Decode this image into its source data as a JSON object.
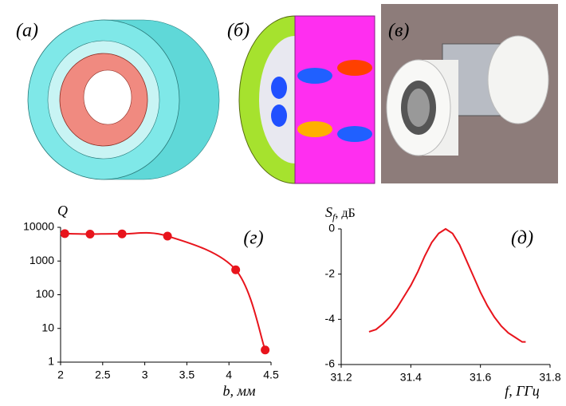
{
  "panel_labels": [
    "(a)",
    "(б)",
    "(в)"
  ],
  "chart_data": [
    {
      "type": "line",
      "annotation": "(г)",
      "ylabel": "Q",
      "xlabel": "b, мм",
      "x": [
        2.05,
        2.35,
        2.73,
        3.27,
        4.08,
        4.43
      ],
      "values": [
        6500,
        6300,
        6400,
        5500,
        550,
        2.3
      ],
      "color": "#e8141c",
      "markers": true,
      "log_y": true,
      "xlim": [
        2,
        4.5
      ],
      "xticks": [
        2,
        2.5,
        3,
        3.5,
        4,
        4.5
      ],
      "ylim": [
        1,
        10000
      ],
      "yticks": [
        1,
        10,
        100,
        1000,
        10000
      ]
    },
    {
      "type": "line",
      "annotation": "(д)",
      "ylabel": [
        "S",
        "f",
        ", дБ"
      ],
      "xlabel": "f, ГГц",
      "x": [
        31.28,
        31.3,
        31.32,
        31.34,
        31.36,
        31.38,
        31.4,
        31.42,
        31.44,
        31.46,
        31.48,
        31.5,
        31.52,
        31.54,
        31.56,
        31.58,
        31.6,
        31.62,
        31.64,
        31.66,
        31.68,
        31.7,
        31.72,
        31.73
      ],
      "values": [
        -4.55,
        -4.45,
        -4.2,
        -3.9,
        -3.5,
        -3.0,
        -2.5,
        -1.9,
        -1.2,
        -0.6,
        -0.2,
        0,
        -0.2,
        -0.7,
        -1.4,
        -2.1,
        -2.8,
        -3.4,
        -3.9,
        -4.3,
        -4.6,
        -4.8,
        -5.0,
        -5.0
      ],
      "color": "#e8141c",
      "markers": false,
      "log_y": false,
      "xlim": [
        31.2,
        31.8
      ],
      "xticks": [
        31.2,
        31.4,
        31.6,
        31.8
      ],
      "ylim": [
        -6,
        0
      ],
      "yticks": [
        0,
        -2,
        -4,
        -6
      ]
    }
  ]
}
